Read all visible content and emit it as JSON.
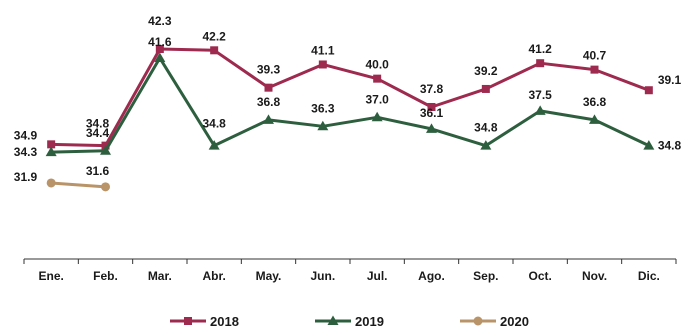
{
  "chart_data": {
    "type": "line",
    "categories": [
      "Ene.",
      "Feb.",
      "Mar.",
      "Abr.",
      "May.",
      "Jun.",
      "Jul.",
      "Ago.",
      "Sep.",
      "Oct.",
      "Nov.",
      "Dic."
    ],
    "series": [
      {
        "name": "2018",
        "color": "#9e2a4f",
        "marker": "square",
        "values": [
          34.9,
          34.8,
          42.3,
          42.2,
          39.3,
          41.1,
          40.0,
          37.8,
          39.2,
          41.2,
          40.7,
          39.1
        ]
      },
      {
        "name": "2019",
        "color": "#2d5f3f",
        "marker": "triangle",
        "values": [
          34.3,
          34.4,
          41.6,
          34.8,
          36.8,
          36.3,
          37.0,
          36.1,
          34.8,
          37.5,
          36.8,
          34.8
        ]
      },
      {
        "name": "2020",
        "color": "#b89468",
        "marker": "circle",
        "values": [
          31.9,
          31.6,
          null,
          null,
          null,
          null,
          null,
          null,
          null,
          null,
          null,
          null
        ]
      }
    ],
    "data_labels": [
      [
        "34.9",
        "34.8",
        "42.3",
        "42.2",
        "39.3",
        "41.1",
        "40.0",
        "37.8",
        "39.2",
        "41.2",
        "40.7",
        "39.1"
      ],
      [
        "34.3",
        "34.4",
        "41.6",
        "34.8",
        "36.8",
        "36.3",
        "37.0",
        "36.1",
        "34.8",
        "37.5",
        "36.8",
        "34.8"
      ],
      [
        "31.9",
        "31.6",
        "",
        "",
        "",
        "",
        "",
        "",
        "",
        "",
        "",
        ""
      ]
    ],
    "ylim": [
      26,
      43
    ],
    "grid": false,
    "legend_position": "bottom"
  }
}
